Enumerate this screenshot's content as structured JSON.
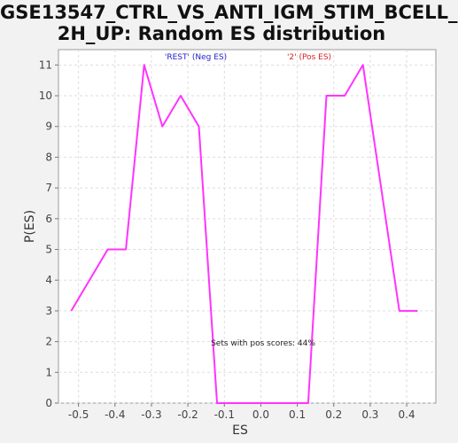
{
  "chart_data": {
    "type": "line",
    "title_line1": "GSE13547_CTRL_VS_ANTI_IGM_STIM_BCELL_",
    "title_line2": "2H_UP: Random ES distribution",
    "xlabel": "ES",
    "ylabel": "P(ES)",
    "xlim": [
      -0.555,
      0.48
    ],
    "ylim": [
      0,
      11.5
    ],
    "x_ticks": [
      -0.5,
      -0.4,
      -0.3,
      -0.2,
      -0.1,
      0.0,
      0.1,
      0.2,
      0.3,
      0.4
    ],
    "x_tick_labels": [
      "-0.5",
      "-0.4",
      "-0.3",
      "-0.2",
      "-0.1",
      "0.0",
      "0.1",
      "0.2",
      "0.3",
      "0.4"
    ],
    "y_ticks": [
      0,
      1,
      2,
      3,
      4,
      5,
      6,
      7,
      8,
      9,
      10,
      11
    ],
    "y_tick_labels": [
      "0",
      "1",
      "2",
      "3",
      "4",
      "5",
      "6",
      "7",
      "8",
      "9",
      "10",
      "11"
    ],
    "grid": true,
    "series": [
      {
        "color": "#ff33ff",
        "x": [
          -0.52,
          -0.42,
          -0.37,
          -0.32,
          -0.27,
          -0.22,
          -0.17,
          -0.12,
          -0.07,
          0.13,
          0.18,
          0.23,
          0.28,
          0.38,
          0.43
        ],
        "y": [
          3,
          5,
          5,
          11,
          9,
          10,
          9,
          0,
          0,
          0,
          10,
          10,
          11,
          3,
          3
        ]
      }
    ],
    "legend": [
      {
        "label": "'REST' (Neg ES)",
        "color": "#2222cc"
      },
      {
        "label": "'2' (Pos ES)",
        "color": "#dd2222"
      }
    ],
    "annotation": "Sets with pos scores: 44%"
  }
}
